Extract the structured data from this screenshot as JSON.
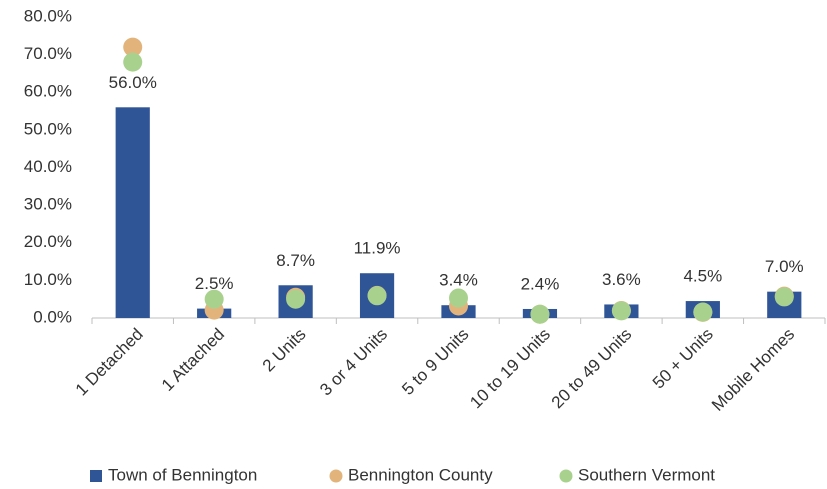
{
  "chart_data": {
    "type": "bar",
    "categories": [
      "1 Detached",
      "1 Attached",
      "2 Units",
      "3 or 4 Units",
      "5 to 9 Units",
      "10 to 19 Units",
      "20 to 49 Units",
      "50 + Units",
      "Mobile Homes"
    ],
    "series": [
      {
        "name": "Town of Bennington",
        "color": "#2f5597",
        "values": [
          56.0,
          2.5,
          8.7,
          11.9,
          3.4,
          2.4,
          3.6,
          4.5,
          7.0
        ],
        "value_labels": [
          "56.0%",
          "2.5%",
          "8.7%",
          "11.9%",
          "3.4%",
          "2.4%",
          "3.6%",
          "4.5%",
          "7.0%"
        ]
      },
      {
        "name": "Bennington County",
        "color": "#e2b47c",
        "values": [
          72,
          2.1,
          5.5,
          6.0,
          3.2,
          1.0,
          2.0,
          1.5,
          5.8
        ]
      },
      {
        "name": "Southern Vermont",
        "color": "#a9d18e",
        "values": [
          68,
          5.0,
          5.0,
          5.9,
          5.3,
          1.0,
          1.9,
          1.6,
          5.6
        ]
      }
    ],
    "ylim": [
      0,
      80
    ],
    "yticks": [
      {
        "value": 0,
        "label": "0.0%"
      },
      {
        "value": 10,
        "label": "10.0%"
      },
      {
        "value": 20,
        "label": "20.0%"
      },
      {
        "value": 30,
        "label": "30.0%"
      },
      {
        "value": 40,
        "label": "40.0%"
      },
      {
        "value": 50,
        "label": "50.0%"
      },
      {
        "value": 60,
        "label": "60.0%"
      },
      {
        "value": 70,
        "label": "70.0%"
      },
      {
        "value": 80,
        "label": "80.0%"
      }
    ],
    "grid": false,
    "legend": "bottom"
  }
}
